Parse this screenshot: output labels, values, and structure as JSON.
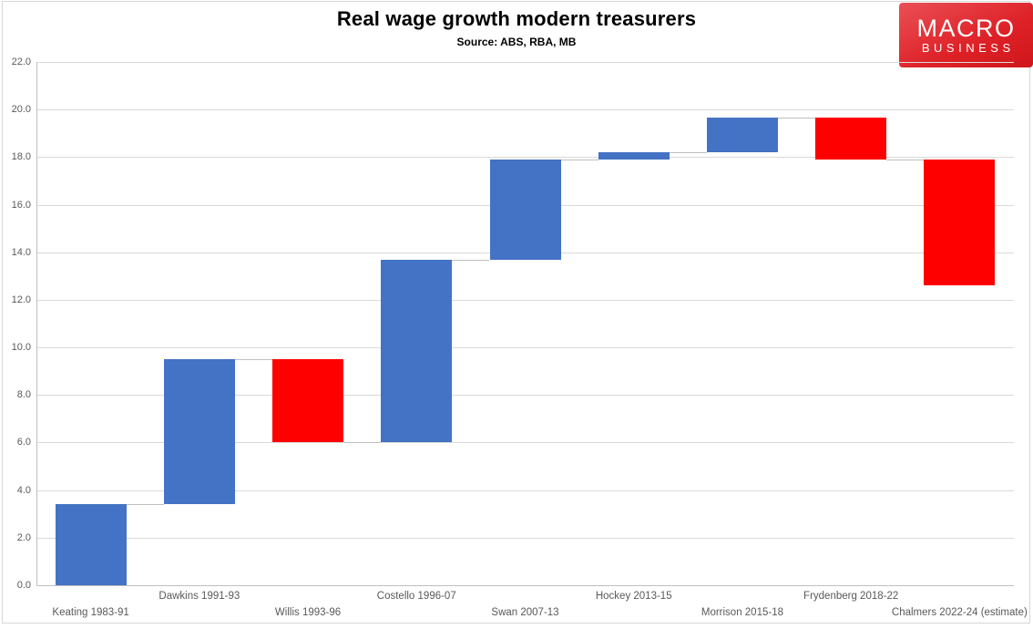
{
  "header": {
    "title": "Real wage growth modern treasurers",
    "subtitle": "Source: ABS, RBA, MB"
  },
  "logo": {
    "line1": "MACRO",
    "line2": "BUSINESS",
    "bg_color": "#dd2127",
    "text_color": "#ffffff"
  },
  "chart_data": {
    "type": "bar",
    "subtype": "waterfall",
    "title": "Real wage growth modern treasurers",
    "subtitle": "Source: ABS, RBA, MB",
    "xlabel": "",
    "ylabel": "",
    "ylim": [
      0,
      22
    ],
    "ytick_step": 2,
    "yticks": [
      "0.0",
      "2.0",
      "4.0",
      "6.0",
      "8.0",
      "10.0",
      "12.0",
      "14.0",
      "16.0",
      "18.0",
      "20.0",
      "22.0"
    ],
    "grid": true,
    "legend": "none",
    "colors": {
      "increase": "#4472C4",
      "decrease": "#FF0000",
      "gridline": "#d9d9d9",
      "axis": "#bfbfbf",
      "tick_text": "#595959"
    },
    "categories": [
      "Keating 1983-91",
      "Dawkins 1991-93",
      "Willis 1993-96",
      "Costello 1996-07",
      "Swan 2007-13",
      "Hockey 2013-15",
      "Morrison 2015-18",
      "Frydenberg 2018-22",
      "Chalmers 2022-24 (estimate)"
    ],
    "bars": [
      {
        "label": "Keating 1983-91",
        "start": 0.0,
        "end": 3.4,
        "change": 3.4,
        "direction": "increase"
      },
      {
        "label": "Dawkins 1991-93",
        "start": 3.4,
        "end": 9.5,
        "change": 6.1,
        "direction": "increase"
      },
      {
        "label": "Willis 1993-96",
        "start": 9.5,
        "end": 6.0,
        "change": -3.5,
        "direction": "decrease"
      },
      {
        "label": "Costello 1996-07",
        "start": 6.0,
        "end": 13.7,
        "change": 7.7,
        "direction": "increase"
      },
      {
        "label": "Swan 2007-13",
        "start": 13.7,
        "end": 17.9,
        "change": 4.2,
        "direction": "increase"
      },
      {
        "label": "Hockey 2013-15",
        "start": 17.9,
        "end": 18.2,
        "change": 0.3,
        "direction": "increase"
      },
      {
        "label": "Morrison 2015-18",
        "start": 18.2,
        "end": 19.65,
        "change": 1.45,
        "direction": "increase"
      },
      {
        "label": "Frydenberg 2018-22",
        "start": 19.65,
        "end": 17.9,
        "change": -1.75,
        "direction": "decrease"
      },
      {
        "label": "Chalmers 2022-24 (estimate)",
        "start": 17.9,
        "end": 12.6,
        "change": -5.3,
        "direction": "decrease"
      }
    ]
  }
}
